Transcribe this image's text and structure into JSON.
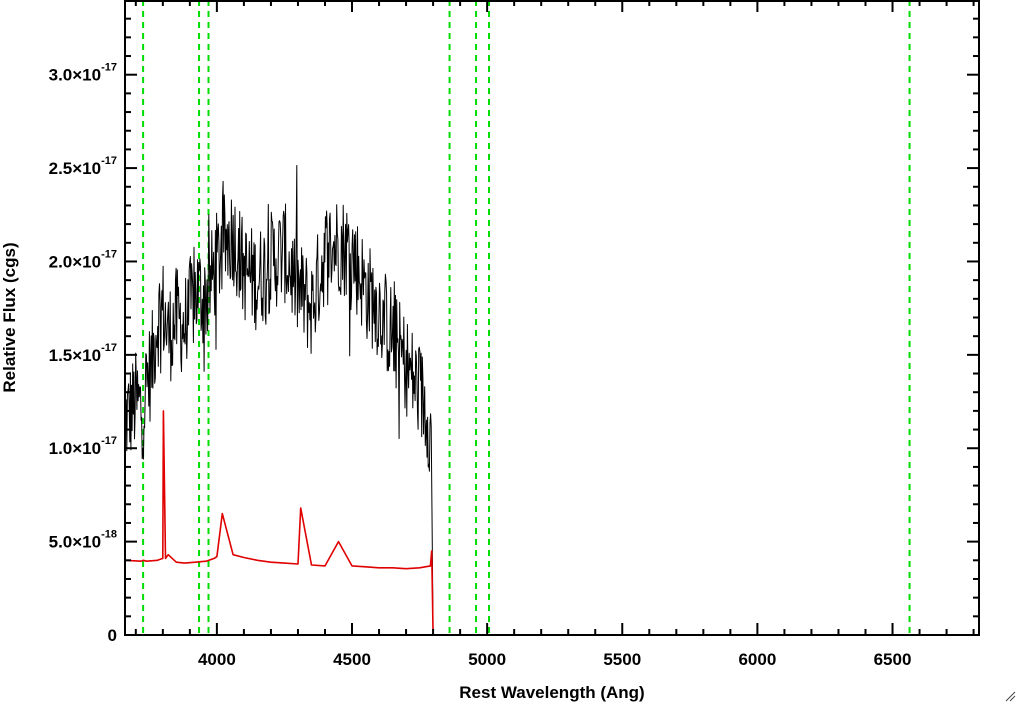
{
  "chart_data": {
    "type": "line",
    "title": "",
    "xlabel": "Rest Wavelength (Ang)",
    "ylabel": "Relative Flux (cgs)",
    "xlim": [
      3660,
      6820
    ],
    "ylim": [
      0,
      3.4e-17
    ],
    "grid": false,
    "x_ticks": [
      {
        "value": 4000,
        "label": "4000"
      },
      {
        "value": 4500,
        "label": "4500"
      },
      {
        "value": 5000,
        "label": "5000"
      },
      {
        "value": 5500,
        "label": "5500"
      },
      {
        "value": 6000,
        "label": "6000"
      },
      {
        "value": 6500,
        "label": "6500"
      }
    ],
    "y_ticks": [
      {
        "value": 0,
        "mantissa": "0",
        "exponent": ""
      },
      {
        "value": 5e-18,
        "mantissa": "5.0×10",
        "exponent": "-18"
      },
      {
        "value": 1e-17,
        "mantissa": "1.0×10",
        "exponent": "-17"
      },
      {
        "value": 1.5e-17,
        "mantissa": "1.5×10",
        "exponent": "-17"
      },
      {
        "value": 2e-17,
        "mantissa": "2.0×10",
        "exponent": "-17"
      },
      {
        "value": 2.5e-17,
        "mantissa": "2.5×10",
        "exponent": "-17"
      },
      {
        "value": 3e-17,
        "mantissa": "3.0×10",
        "exponent": "-17"
      }
    ],
    "series": [
      {
        "color": "#000000",
        "style": "noisy spectrum",
        "x": [
          3660,
          3680,
          3700,
          3727,
          3740,
          3760,
          3780,
          3800,
          3820,
          3850,
          3880,
          3900,
          3930,
          3950,
          3970,
          4000,
          4030,
          4060,
          4100,
          4150,
          4200,
          4250,
          4300,
          4350,
          4400,
          4450,
          4500,
          4550,
          4600,
          4650,
          4700,
          4750,
          4780,
          4795,
          4800
        ],
        "y": [
          1.15e-17,
          1.2e-17,
          1.25e-17,
          1.2e-17,
          1.35e-17,
          1.45e-17,
          1.7e-17,
          1.75e-17,
          1.6e-17,
          1.7e-17,
          1.65e-17,
          1.75e-17,
          1.85e-17,
          1.8e-17,
          1.85e-17,
          2e-17,
          2.1e-17,
          2.15e-17,
          1.95e-17,
          1.9e-17,
          2e-17,
          2.05e-17,
          1.85e-17,
          1.75e-17,
          2.05e-17,
          2.1e-17,
          2.05e-17,
          1.85e-17,
          1.75e-17,
          1.6e-17,
          1.45e-17,
          1.3e-17,
          1.2e-17,
          1e-17,
          0
        ]
      },
      {
        "color": "#e00000",
        "style": "emission-line model",
        "x": [
          3660,
          3720,
          3727,
          3740,
          3780,
          3800,
          3802,
          3810,
          3820,
          3850,
          3880,
          3920,
          3960,
          3990,
          4000,
          4020,
          4060,
          4100,
          4150,
          4200,
          4250,
          4300,
          4310,
          4350,
          4400,
          4450,
          4500,
          4550,
          4600,
          4650,
          4700,
          4750,
          4790,
          4795,
          4800,
          5000,
          5500,
          6000,
          6500,
          6820
        ],
        "y": [
          4e-18,
          3.95e-18,
          4e-18,
          3.95e-18,
          4e-18,
          4.1e-18,
          1.2e-17,
          4.1e-18,
          4.3e-18,
          3.9e-18,
          3.85e-18,
          3.9e-18,
          3.95e-18,
          4.1e-18,
          4.2e-18,
          6.5e-18,
          4.3e-18,
          4.15e-18,
          4e-18,
          3.9e-18,
          3.85e-18,
          3.8e-18,
          6.8e-18,
          3.75e-18,
          3.7e-18,
          5e-18,
          3.7e-18,
          3.65e-18,
          3.6e-18,
          3.6e-18,
          3.55e-18,
          3.6e-18,
          3.7e-18,
          4.5e-18,
          0,
          0,
          0,
          0,
          0,
          0
        ]
      }
    ],
    "reference_lines": {
      "color": "#00dd00",
      "style": "dashed",
      "x": [
        3727,
        3934,
        3969,
        4861,
        4959,
        5007,
        6563
      ]
    }
  }
}
